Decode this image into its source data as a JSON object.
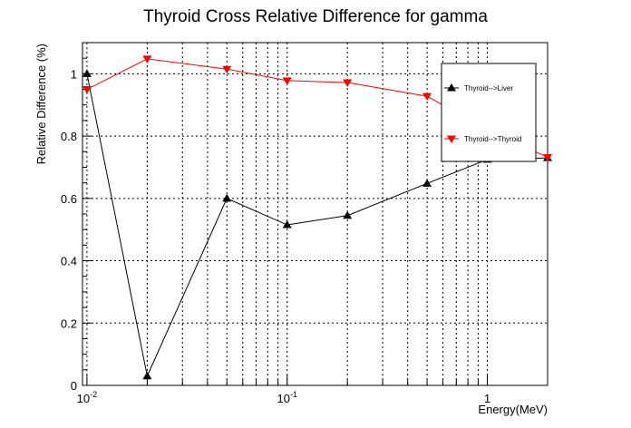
{
  "chart_data": {
    "type": "line",
    "title": "Thyroid Cross Relative Difference for gamma",
    "xlabel": "Energy(MeV)",
    "ylabel": "Relative Difference (%)",
    "x_scale": "log",
    "xlim": [
      0.0095,
      2.0
    ],
    "ylim": [
      0,
      1.1
    ],
    "grid": true,
    "legend_position": "top-right",
    "x_ticks": [
      {
        "value": 0.01,
        "base": "10",
        "exp": "-2"
      },
      {
        "value": 0.1,
        "base": "10",
        "exp": "-1"
      },
      {
        "value": 1,
        "base": "1",
        "exp": ""
      }
    ],
    "y_ticks": [
      {
        "value": 0,
        "label": "0"
      },
      {
        "value": 0.2,
        "label": "0.2"
      },
      {
        "value": 0.4,
        "label": "0.4"
      },
      {
        "value": 0.6,
        "label": "0.6"
      },
      {
        "value": 0.8,
        "label": "0.8"
      },
      {
        "value": 1,
        "label": "1"
      }
    ],
    "series": [
      {
        "name": "Thyroid-->Liver",
        "color": "#000000",
        "marker": "triangle-up",
        "x": [
          0.01,
          0.02,
          0.05,
          0.1,
          0.2,
          0.5,
          1.0,
          2.0
        ],
        "y": [
          1.0,
          0.03,
          0.6,
          0.515,
          0.545,
          0.648,
          0.725,
          0.73
        ]
      },
      {
        "name": "Thyroid-->Thyroid",
        "color": "#ff0000",
        "marker": "triangle-down",
        "x": [
          0.01,
          0.02,
          0.05,
          0.1,
          0.2,
          0.5,
          1.0,
          2.0
        ],
        "y": [
          0.95,
          1.048,
          1.015,
          0.978,
          0.972,
          0.928,
          0.82,
          0.732
        ]
      }
    ]
  }
}
